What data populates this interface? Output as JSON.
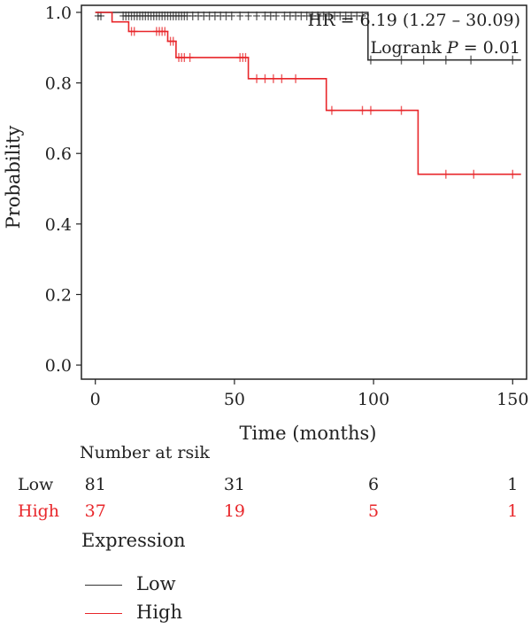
{
  "chart_data": {
    "type": "line",
    "subtype": "kaplan-meier",
    "xlabel": "Time (months)",
    "ylabel": "Probability",
    "xlim": [
      -5,
      155
    ],
    "ylim": [
      -0.04,
      1.02
    ],
    "xticks": [
      0,
      50,
      100,
      150
    ],
    "yticks": [
      0.0,
      0.2,
      0.4,
      0.6,
      0.8,
      1.0
    ],
    "ytick_labels": [
      "0.0",
      "0.2",
      "0.4",
      "0.6",
      "0.8",
      "1.0"
    ],
    "grid": false,
    "annotations": {
      "hr_text": "HR = 6.19 (1.27 – 30.09)",
      "logrank_prefix": "Logrank ",
      "logrank_p": "P",
      "logrank_suffix": " = 0.01"
    },
    "series": [
      {
        "name": "Low",
        "color": "#333333",
        "steps": [
          [
            0,
            1.0
          ],
          [
            98,
            1.0
          ],
          [
            98,
            0.865
          ],
          [
            153,
            0.865
          ]
        ],
        "censor_x": [
          1,
          2,
          10,
          11,
          12,
          13,
          14,
          15,
          16,
          17,
          18,
          19,
          20,
          21,
          22,
          23,
          24,
          25,
          26,
          27,
          28,
          29,
          30,
          31,
          32,
          33,
          35,
          37,
          39,
          41,
          43,
          45,
          47,
          49,
          52,
          55,
          58,
          61,
          63,
          65,
          68,
          70,
          72,
          74,
          76,
          78,
          80,
          82,
          84,
          86,
          88,
          90,
          92,
          94,
          96
        ],
        "censor_y": 0.99,
        "censor_x2": [
          99,
          110,
          118,
          126,
          135,
          150
        ],
        "censor_y2": 0.865
      },
      {
        "name": "High",
        "color": "#e8262a",
        "steps": [
          [
            0,
            1.0
          ],
          [
            6,
            1.0
          ],
          [
            6,
            0.973
          ],
          [
            12,
            0.973
          ],
          [
            12,
            0.946
          ],
          [
            26,
            0.946
          ],
          [
            26,
            0.918
          ],
          [
            29,
            0.918
          ],
          [
            29,
            0.872
          ],
          [
            55,
            0.872
          ],
          [
            55,
            0.812
          ],
          [
            83,
            0.812
          ],
          [
            83,
            0.722
          ],
          [
            116,
            0.722
          ],
          [
            116,
            0.541
          ],
          [
            153,
            0.541
          ]
        ],
        "censor_x": [
          13,
          14,
          22,
          23,
          24,
          25,
          27,
          28,
          30,
          31,
          32,
          34,
          52,
          53,
          54,
          58,
          61,
          64,
          67,
          72,
          85,
          96,
          99,
          110,
          126,
          136,
          150
        ],
        "censor_y_map": "step"
      }
    ],
    "risk_table": {
      "title": "Number at rsik",
      "times": [
        0,
        50,
        100,
        150
      ],
      "rows": [
        {
          "group": "Low",
          "color": "#222222",
          "counts": [
            "81",
            "31",
            "6",
            "1"
          ]
        },
        {
          "group": "High",
          "color": "#e8262a",
          "counts": [
            "37",
            "19",
            "5",
            "1"
          ]
        }
      ]
    },
    "legend": {
      "title": "Expression",
      "items": [
        {
          "label": "Low",
          "color": "#333333"
        },
        {
          "label": "High",
          "color": "#e8262a"
        }
      ]
    }
  }
}
